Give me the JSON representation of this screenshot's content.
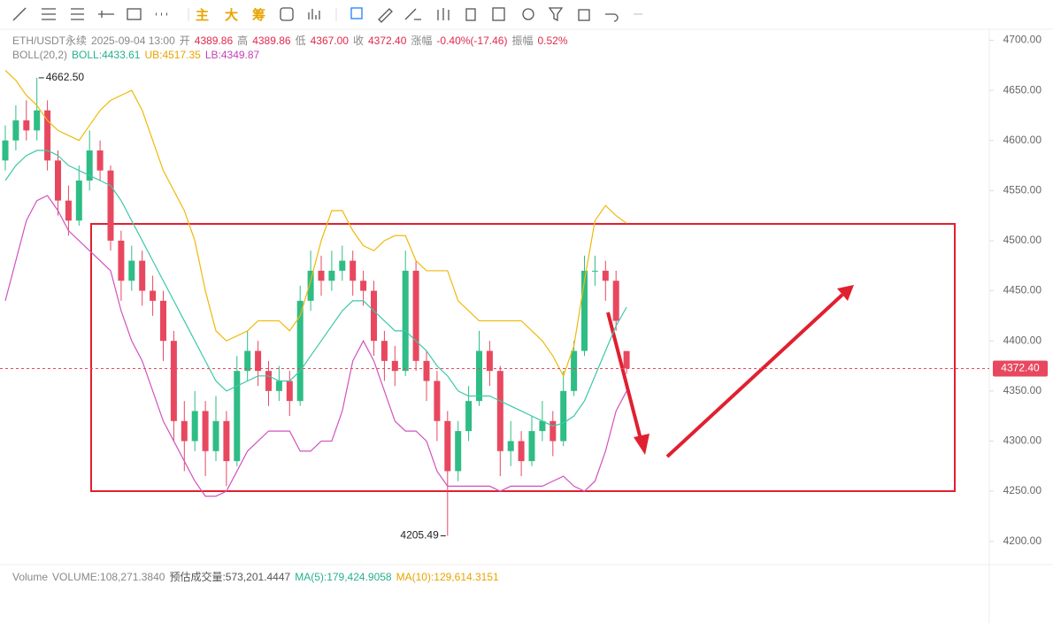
{
  "toolbar": [
    "主",
    "大",
    "筹"
  ],
  "chart_data": {
    "type": "candlestick",
    "symbol": "ETH/USDT永续",
    "time": "2025-09-04 13:00",
    "info": [
      {
        "label": "开",
        "text": "4389.86"
      },
      {
        "label": "高",
        "text": "4389.86"
      },
      {
        "label": "低",
        "text": "4367.00"
      },
      {
        "label": "收",
        "text": "4372.40"
      },
      {
        "label": "涨幅",
        "text": "-0.40%(-17.46)"
      },
      {
        "label": "振幅",
        "text": "0.52%"
      }
    ],
    "info_color": "#e0294a",
    "indicator": "BOLL(20,2)",
    "readouts": [
      {
        "text": "BOLL:4433.61",
        "color": "#26b08f"
      },
      {
        "text": "UB:4517.35",
        "color": "#e8a400"
      },
      {
        "text": "LB:4349.87",
        "color": "#c540b5"
      }
    ],
    "volume_header": [
      {
        "text": "Volume",
        "color": "#888"
      },
      {
        "text": "VOLUME:108,271.3840",
        "color": "#888"
      },
      {
        "text": "预估成交量:573,201.4447",
        "color": "#555"
      },
      {
        "text": "MA(5):179,424.9058",
        "color": "#26b08f"
      },
      {
        "text": "MA(10):129,614.3151",
        "color": "#e8a400"
      }
    ],
    "up_color": "#2ebd85",
    "down_color": "#e8485f",
    "open": [
      4580,
      4600,
      4620,
      4610,
      4630,
      4580,
      4540,
      4520,
      4560,
      4590,
      4570,
      4500,
      4460,
      4480,
      4450,
      4440,
      4400,
      4320,
      4300,
      4330,
      4290,
      4320,
      4280,
      4370,
      4390,
      4370,
      4350,
      4360,
      4340,
      4440,
      4470,
      4460,
      4470,
      4480,
      4460,
      4450,
      4400,
      4380,
      4370,
      4470,
      4380,
      4360,
      4320,
      4270,
      4310,
      4340,
      4390,
      4370,
      4290,
      4300,
      4280,
      4310,
      4320,
      4300,
      4350,
      4390,
      4470,
      4470,
      4460,
      4389.86
    ],
    "high": [
      4615,
      4635,
      4640,
      4662.5,
      4640,
      4590,
      4555,
      4575,
      4610,
      4600,
      4575,
      4510,
      4495,
      4490,
      4465,
      4450,
      4410,
      4340,
      4350,
      4340,
      4345,
      4330,
      4385,
      4410,
      4400,
      4380,
      4375,
      4370,
      4455,
      4490,
      4485,
      4490,
      4495,
      4490,
      4470,
      4460,
      4410,
      4395,
      4490,
      4480,
      4390,
      4370,
      4330,
      4320,
      4355,
      4410,
      4400,
      4375,
      4320,
      4310,
      4325,
      4340,
      4330,
      4370,
      4400,
      4485,
      4485,
      4480,
      4470,
      4389.86
    ],
    "low": [
      4570,
      4590,
      4600,
      4600,
      4570,
      4525,
      4505,
      4515,
      4550,
      4560,
      4490,
      4440,
      4450,
      4435,
      4425,
      4380,
      4300,
      4270,
      4290,
      4265,
      4280,
      4255,
      4275,
      4360,
      4355,
      4335,
      4340,
      4325,
      4335,
      4430,
      4445,
      4450,
      4460,
      4445,
      4435,
      4385,
      4360,
      4355,
      4365,
      4370,
      4340,
      4300,
      4205.49,
      4260,
      4300,
      4335,
      4355,
      4265,
      4275,
      4265,
      4275,
      4300,
      4285,
      4295,
      4345,
      4385,
      4455,
      4440,
      4410,
      4367
    ],
    "close": [
      4600,
      4620,
      4610,
      4630,
      4580,
      4540,
      4520,
      4560,
      4590,
      4570,
      4500,
      4460,
      4480,
      4450,
      4440,
      4400,
      4320,
      4300,
      4330,
      4290,
      4320,
      4280,
      4370,
      4390,
      4370,
      4350,
      4360,
      4340,
      4440,
      4470,
      4460,
      4470,
      4480,
      4460,
      4450,
      4400,
      4380,
      4370,
      4470,
      4380,
      4360,
      4320,
      4270,
      4310,
      4340,
      4390,
      4370,
      4290,
      4300,
      4280,
      4310,
      4320,
      4300,
      4350,
      4390,
      4470,
      4470,
      4460,
      4420,
      4372.4
    ],
    "bands": [
      {
        "color": "#f0b90b",
        "values": [
          4670,
          4660,
          4645,
          4635,
          4620,
          4610,
          4605,
          4600,
          4615,
          4630,
          4640,
          4645,
          4650,
          4630,
          4600,
          4570,
          4550,
          4530,
          4500,
          4450,
          4410,
          4400,
          4405,
          4410,
          4420,
          4420,
          4420,
          4410,
          4425,
          4460,
          4500,
          4530,
          4530,
          4510,
          4495,
          4490,
          4500,
          4505,
          4505,
          4480,
          4470,
          4470,
          4470,
          4440,
          4430,
          4420,
          4420,
          4420,
          4420,
          4420,
          4410,
          4400,
          4385,
          4365,
          4395,
          4460,
          4520,
          4535,
          4525,
          4517.35
        ]
      },
      {
        "color": "#3cc8a8",
        "values": [
          4560,
          4575,
          4585,
          4590,
          4590,
          4585,
          4575,
          4570,
          4565,
          4560,
          4555,
          4540,
          4520,
          4500,
          4480,
          4460,
          4440,
          4420,
          4400,
          4380,
          4360,
          4350,
          4355,
          4360,
          4365,
          4365,
          4360,
          4360,
          4370,
          4385,
          4400,
          4415,
          4430,
          4440,
          4440,
          4430,
          4420,
          4410,
          4410,
          4400,
          4390,
          4375,
          4365,
          4350,
          4345,
          4345,
          4345,
          4340,
          4335,
          4330,
          4325,
          4320,
          4315,
          4318,
          4325,
          4340,
          4365,
          4390,
          4415,
          4433.61
        ]
      },
      {
        "color": "#d052c0",
        "values": [
          4440,
          4480,
          4520,
          4540,
          4545,
          4530,
          4510,
          4500,
          4490,
          4480,
          4470,
          4430,
          4400,
          4380,
          4350,
          4320,
          4300,
          4280,
          4260,
          4245,
          4245,
          4250,
          4270,
          4290,
          4300,
          4310,
          4310,
          4310,
          4290,
          4290,
          4300,
          4300,
          4330,
          4380,
          4400,
          4380,
          4350,
          4320,
          4310,
          4310,
          4300,
          4270,
          4255,
          4255,
          4255,
          4255,
          4255,
          4250,
          4255,
          4255,
          4255,
          4255,
          4260,
          4265,
          4255,
          4250,
          4260,
          4290,
          4330,
          4349.87
        ]
      }
    ],
    "max_label": {
      "value": 4662.5,
      "label": "4662.50"
    },
    "min_label": {
      "value": 4205.49,
      "label": "4205.49"
    },
    "last_price": {
      "value": 4372.4,
      "label": "4372.40"
    },
    "ylim": [
      4175,
      4711
    ],
    "yticks": [
      {
        "value": 4200,
        "label": "4200.00"
      },
      {
        "value": 4250,
        "label": "4250.00"
      },
      {
        "value": 4300,
        "label": "4300.00"
      },
      {
        "value": 4350,
        "label": "4350.00"
      },
      {
        "value": 4400,
        "label": "4400.00"
      },
      {
        "value": 4450,
        "label": "4450.00"
      },
      {
        "value": 4500,
        "label": "4500.00"
      },
      {
        "value": 4550,
        "label": "4550.00"
      },
      {
        "value": 4600,
        "label": "4600.00"
      },
      {
        "value": 4650,
        "label": "4650.00"
      },
      {
        "value": 4700,
        "label": "4700.00"
      }
    ]
  }
}
